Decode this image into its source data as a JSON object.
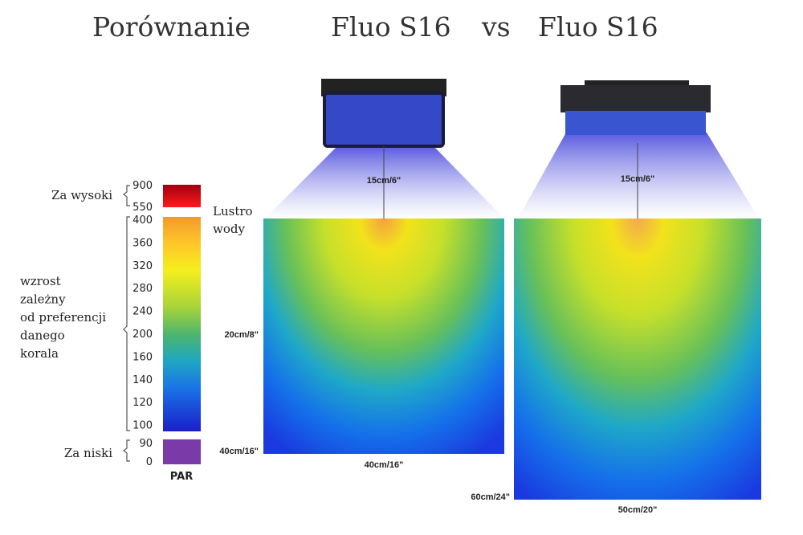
{
  "header": {
    "title": "Porównanie",
    "left_name": "Fluo S16",
    "vs": "vs",
    "right_name": "Fluo S16"
  },
  "legend": {
    "high_label": "Za wysoki",
    "high_ticks": [
      "900",
      "550"
    ],
    "mid_label_lines": [
      "wzrost",
      "zależny",
      "od preferencji",
      "danego",
      "korala"
    ],
    "mid_ticks": [
      "400",
      "360",
      "320",
      "280",
      "240",
      "200",
      "160",
      "140",
      "120",
      "100"
    ],
    "low_label": "Za niski",
    "low_ticks": [
      "90",
      "0"
    ],
    "unit": "PAR"
  },
  "surface_label_lines": [
    "Lustro",
    "wody"
  ],
  "left_tank": {
    "lamp_height": "15cm/6\"",
    "depth": "20cm/8\"",
    "bottom_depth": "40cm/16\"",
    "width": "40cm/16\""
  },
  "right_tank": {
    "lamp_height": "15cm/6\"",
    "depth": "60cm/24\"",
    "width": "50cm/20\""
  }
}
